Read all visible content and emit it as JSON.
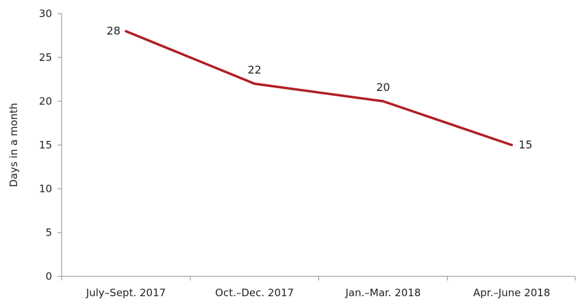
{
  "chart_data": {
    "type": "line",
    "categories": [
      "July–Sept. 2017",
      "Oct.–Dec. 2017",
      "Jan.–Mar. 2018",
      "Apr.–June 2018"
    ],
    "series": [
      {
        "values": [
          28,
          22,
          20,
          15
        ],
        "color": "#b01e23"
      }
    ],
    "data_labels": [
      "28",
      "22",
      "20",
      "15"
    ],
    "ylabel": "Days in a month",
    "ylim": [
      0,
      30
    ],
    "yticks": [
      0,
      5,
      10,
      15,
      20,
      25,
      30
    ],
    "ytick_labels": [
      "0",
      "5",
      "10",
      "15",
      "20",
      "25",
      "30"
    ],
    "grid": false,
    "legend": "none"
  }
}
